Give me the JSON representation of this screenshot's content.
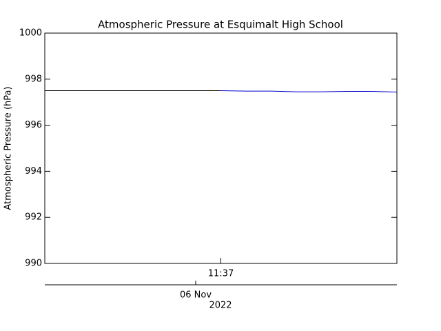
{
  "chart_data": {
    "type": "line",
    "title": "Atmospheric Pressure at Esquimalt High School",
    "y_label": "Atmospheric Pressure (hPa)",
    "categories": [
      null,
      null,
      null,
      null,
      null,
      null,
      null,
      "11:37",
      null,
      null,
      null,
      null,
      null,
      null,
      null
    ],
    "date_label": "06 Nov",
    "year_label": "2022",
    "series": [
      {
        "color": "#000000",
        "values": [
          997.5,
          997.5,
          997.5,
          997.5,
          997.5,
          997.5,
          997.5,
          997.5,
          null,
          null,
          null,
          null,
          null,
          null,
          null
        ]
      },
      {
        "color": "#0000cc",
        "values": [
          null,
          null,
          null,
          null,
          null,
          null,
          null,
          997.5,
          997.48,
          997.48,
          997.45,
          997.45,
          997.47,
          997.47,
          997.44
        ]
      }
    ],
    "ylim": [
      990,
      1000
    ],
    "yticks": [
      990,
      992,
      994,
      996,
      998,
      1000
    ]
  }
}
